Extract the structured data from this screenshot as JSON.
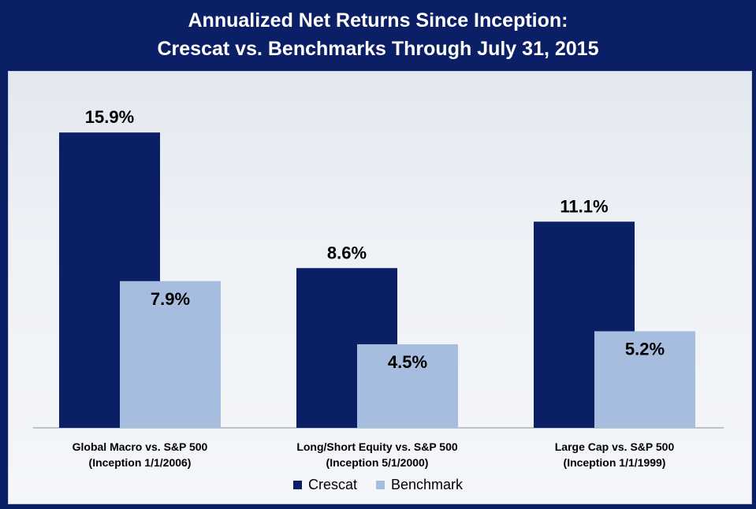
{
  "header": {
    "title_line1": "Annualized Net Returns Since Inception:",
    "title_line2": "Crescat vs. Benchmarks Through July 31, 2015"
  },
  "colors": {
    "background": "#0b1f66",
    "crescat": "#0b1f66",
    "benchmark": "#a7bde0"
  },
  "chart_data": {
    "type": "bar",
    "title": "Annualized Net Returns Since Inception: Crescat vs. Benchmarks Through July 31, 2015",
    "categories": [
      [
        "Global Macro vs. S&P 500",
        "(Inception 1/1/2006)"
      ],
      [
        "Long/Short Equity vs. S&P 500",
        "(Inception 5/1/2000)"
      ],
      [
        "Large Cap vs. S&P 500",
        "(Inception 1/1/1999)"
      ]
    ],
    "series": [
      {
        "name": "Crescat",
        "values": [
          15.9,
          8.6,
          11.1
        ],
        "labels": [
          "15.9%",
          "8.6%",
          "11.1%"
        ]
      },
      {
        "name": "Benchmark",
        "values": [
          7.9,
          4.5,
          5.2
        ],
        "labels": [
          "7.9%",
          "4.5%",
          "5.2%"
        ]
      }
    ],
    "ylim": [
      0,
      18
    ],
    "grid": false,
    "legend_position": "bottom"
  }
}
